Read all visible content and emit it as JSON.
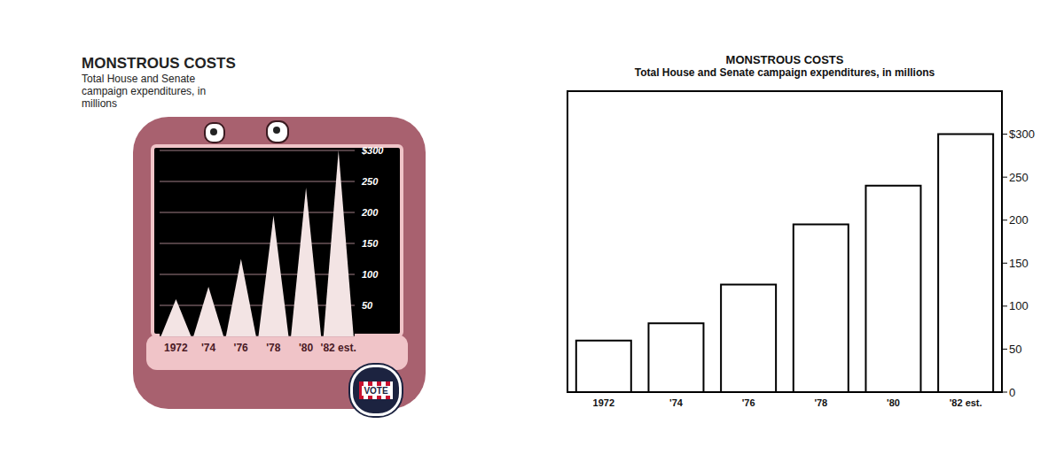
{
  "chart_data": [
    {
      "type": "bar",
      "title": "MONSTROUS COSTS",
      "subtitle": "Total House and Senate campaign expenditures, in millions",
      "categories": [
        "1972",
        "'74",
        "'76",
        "'78",
        "'80",
        "'82 est."
      ],
      "values": [
        60,
        80,
        125,
        195,
        240,
        300
      ],
      "color": "#f3e4e4",
      "marker": "triangle",
      "grid": true,
      "ylim": [
        0,
        300
      ],
      "yticks": [
        50,
        100,
        150,
        200,
        250,
        {
          "value": 300,
          "label": "$300"
        }
      ],
      "annotations": [
        "VOTE"
      ]
    },
    {
      "type": "bar",
      "title": "MONSTROUS COSTS",
      "subtitle": "Total House and Senate campaign expenditures, in millions",
      "categories": [
        "1972",
        "'74",
        "'76",
        "'78",
        "'80",
        "'82 est."
      ],
      "values": [
        60,
        80,
        125,
        195,
        240,
        300
      ],
      "color": "#ffffff",
      "ylim": [
        0,
        350
      ],
      "yticks": [
        0,
        50,
        100,
        150,
        200,
        250,
        {
          "value": 300,
          "label": "$300"
        }
      ]
    }
  ]
}
